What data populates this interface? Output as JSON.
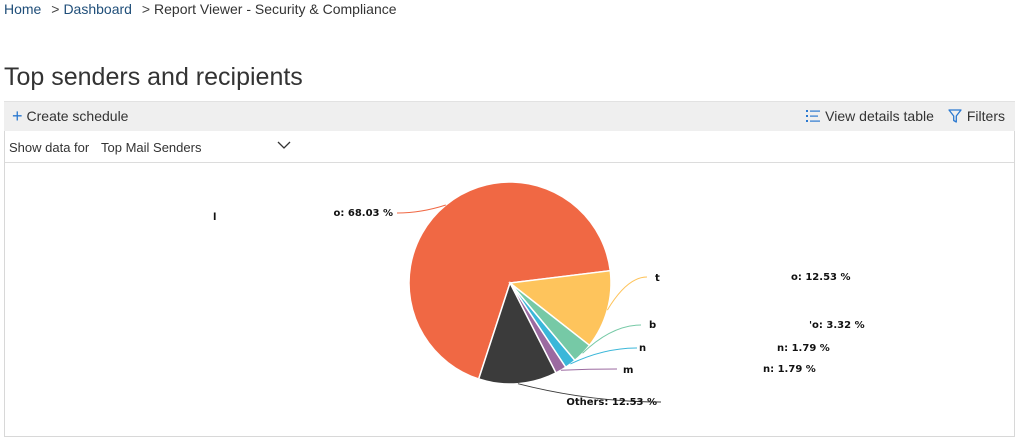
{
  "breadcrumb": {
    "home": "Home",
    "dashboard": "Dashboard",
    "current": "Report Viewer - Security & Compliance",
    "separator": ">"
  },
  "page": {
    "title": "Top senders and recipients"
  },
  "toolbar": {
    "create_schedule": "Create schedule",
    "view_details": "View details table",
    "filters": "Filters"
  },
  "filter": {
    "label": "Show data for",
    "selected": "Top Mail Senders"
  },
  "colors": {
    "accent": "#2b79d0",
    "slice_colors": [
      "#f06844",
      "#fec45c",
      "#76c9a6",
      "#3bb7d9",
      "#9b6aa0",
      "#3b3b3b"
    ]
  },
  "chart_data": {
    "type": "pie",
    "legend": "none",
    "slices": [
      {
        "label_text": "o: 68.03 %",
        "value": 68.03,
        "color": "#f06844"
      },
      {
        "label_text": "o: 12.53 %",
        "value": 12.53,
        "color": "#fec45c"
      },
      {
        "label_text": "'o: 3.32 %",
        "value": 3.32,
        "color": "#76c9a6"
      },
      {
        "label_text": "n: 1.79 %",
        "value": 1.79,
        "color": "#3bb7d9"
      },
      {
        "label_text": "n: 1.79 %",
        "value": 1.79,
        "color": "#9b6aa0"
      },
      {
        "label_text": "Others: 12.53 %",
        "value": 12.53,
        "color": "#3b3b3b"
      }
    ],
    "redacted_fragments": [
      "l",
      "t",
      "b",
      "n",
      "m"
    ]
  }
}
